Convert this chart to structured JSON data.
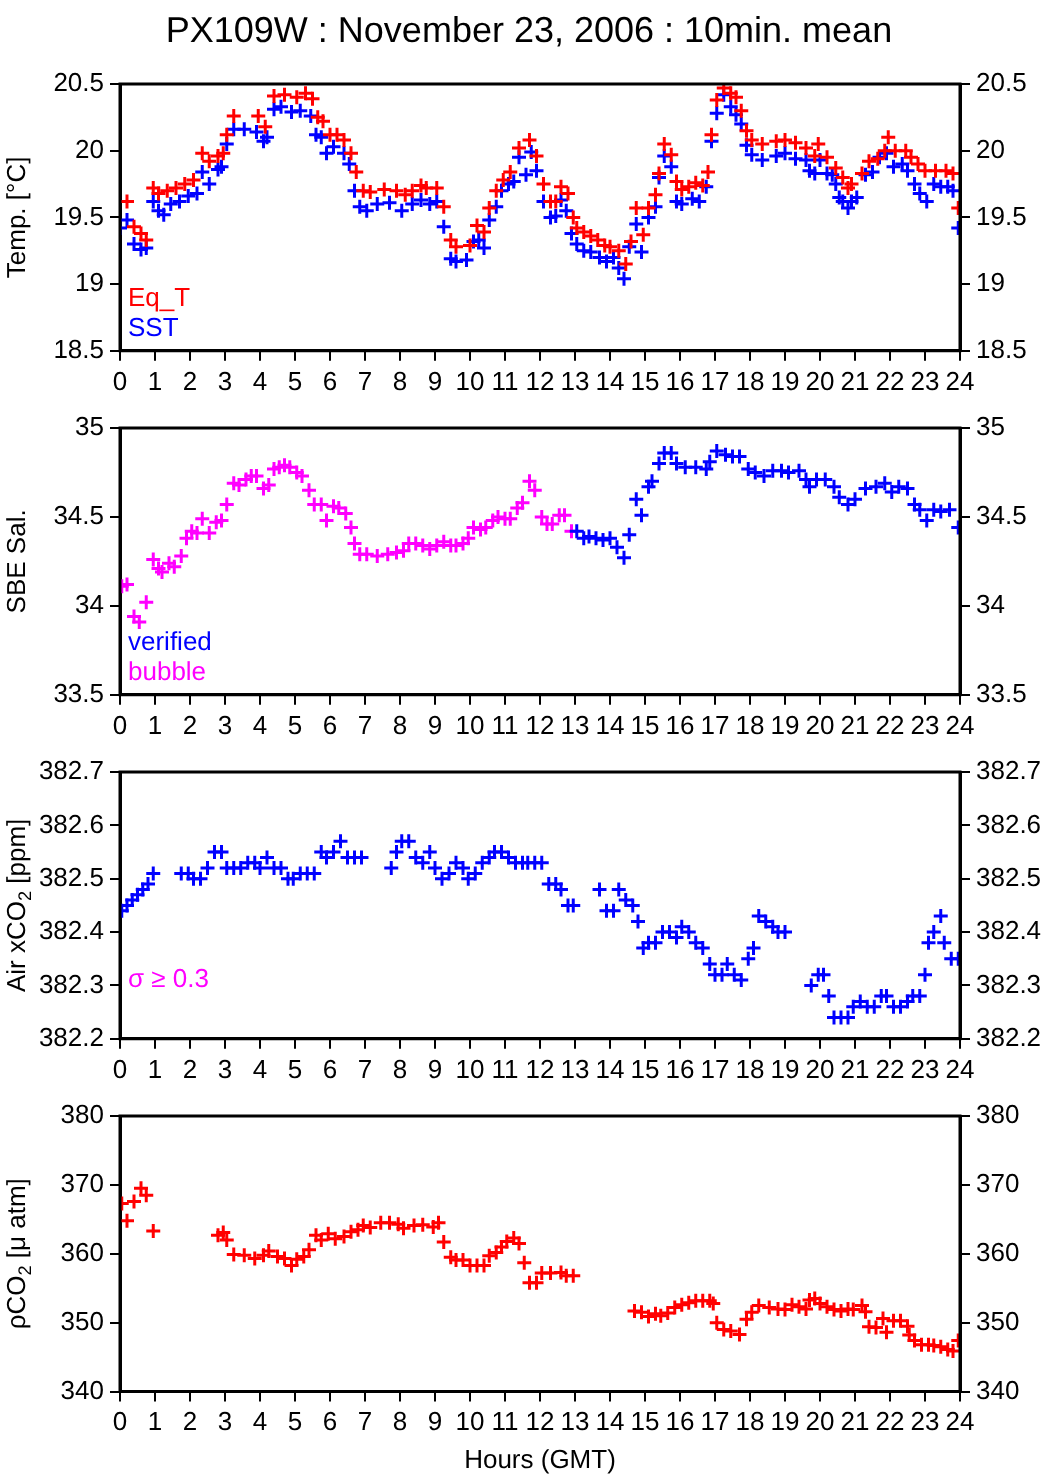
{
  "chart_data": [
    {
      "type": "scatter",
      "title": "PX109W : November 23, 2006 : 10min. mean",
      "ylabel": "Temp. [°C]",
      "marker": "cross",
      "legend": "bottom left",
      "xlim": [
        0,
        24
      ],
      "xticks": [
        0,
        1,
        2,
        3,
        4,
        5,
        6,
        7,
        8,
        9,
        10,
        11,
        12,
        13,
        14,
        15,
        16,
        17,
        18,
        19,
        20,
        21,
        22,
        23,
        24
      ],
      "ylim": [
        18.5,
        20.5
      ],
      "yticks": [
        18.5,
        19,
        19.5,
        20,
        20.5
      ],
      "y2lim": [
        18.5,
        20.5
      ],
      "y2ticks": [
        18.5,
        19,
        19.5,
        20,
        20.5
      ],
      "series": [
        {
          "name": "Eq_T",
          "color": "#ff0000",
          "x": [
            0.2,
            0.4,
            0.6,
            0.75,
            0.95,
            1.1,
            1.35,
            1.6,
            1.85,
            2.1,
            2.35,
            2.55,
            2.8,
            2.95,
            3.05,
            3.25,
            3.95,
            4.15,
            4.4,
            4.7,
            5.05,
            5.3,
            5.5,
            5.65,
            5.8,
            6.0,
            6.2,
            6.4,
            6.6,
            6.75,
            6.95,
            7.15,
            7.55,
            7.9,
            8.15,
            8.35,
            8.6,
            8.75,
            9.05,
            9.25,
            9.45,
            9.6,
            10.0,
            10.2,
            10.4,
            10.55,
            10.75,
            10.95,
            11.15,
            11.4,
            11.7,
            11.9,
            12.1,
            12.3,
            12.45,
            12.6,
            12.8,
            12.95,
            13.05,
            13.25,
            13.45,
            13.65,
            13.85,
            14.0,
            14.25,
            14.45,
            14.6,
            14.75,
            14.95,
            15.1,
            15.3,
            15.4,
            15.55,
            15.75,
            15.9,
            16.05,
            16.25,
            16.45,
            16.65,
            16.8,
            16.9,
            17.05,
            17.25,
            17.45,
            17.6,
            17.75,
            17.9,
            18.05,
            18.35,
            18.75,
            19.0,
            19.3,
            19.6,
            19.85,
            19.95,
            20.2,
            20.45,
            20.65,
            20.8,
            20.9,
            21.2,
            21.4,
            21.65,
            21.85,
            21.95,
            22.15,
            22.45,
            22.6,
            22.8,
            23.0,
            23.3,
            23.6,
            23.8,
            23.95
          ],
          "values": [
            19.62,
            19.43,
            19.38,
            19.33,
            19.72,
            19.68,
            19.7,
            19.72,
            19.75,
            19.78,
            19.98,
            19.92,
            19.96,
            19.98,
            20.12,
            20.26,
            20.26,
            20.18,
            20.41,
            20.42,
            20.4,
            20.43,
            20.39,
            20.25,
            20.22,
            20.12,
            20.12,
            20.08,
            19.98,
            19.84,
            19.7,
            19.69,
            19.71,
            19.7,
            19.67,
            19.7,
            19.74,
            19.72,
            19.72,
            19.58,
            19.33,
            19.28,
            19.29,
            19.44,
            19.39,
            19.57,
            19.7,
            19.78,
            19.84,
            20.02,
            20.08,
            19.96,
            19.75,
            19.62,
            19.62,
            19.73,
            19.68,
            19.5,
            19.42,
            19.39,
            19.36,
            19.33,
            19.29,
            19.28,
            19.25,
            19.15,
            19.32,
            19.57,
            19.37,
            19.57,
            19.67,
            19.83,
            20.05,
            19.97,
            19.77,
            19.71,
            19.73,
            19.76,
            19.74,
            19.84,
            20.12,
            20.38,
            20.47,
            20.43,
            20.4,
            20.3,
            20.15,
            20.08,
            20.05,
            20.07,
            20.08,
            20.06,
            20.02,
            19.96,
            20.05,
            19.95,
            19.87,
            19.8,
            19.72,
            19.75,
            19.83,
            19.92,
            19.94,
            20.0,
            20.1,
            20.0,
            20.0,
            19.95,
            19.9,
            19.85,
            19.85,
            19.85,
            19.83,
            19.57
          ]
        },
        {
          "name": "SST",
          "color": "#0000ff",
          "x": [
            0.0,
            0.2,
            0.4,
            0.6,
            0.75,
            0.95,
            1.1,
            1.25,
            1.45,
            1.7,
            1.95,
            2.2,
            2.35,
            2.55,
            2.8,
            2.9,
            3.05,
            3.25,
            3.55,
            3.9,
            4.1,
            4.2,
            4.4,
            4.6,
            4.9,
            5.15,
            5.45,
            5.6,
            5.75,
            5.9,
            6.1,
            6.4,
            6.55,
            6.7,
            6.85,
            7.05,
            7.35,
            7.7,
            8.05,
            8.35,
            8.6,
            8.85,
            9.05,
            9.25,
            9.45,
            9.6,
            9.9,
            10.1,
            10.25,
            10.4,
            10.55,
            10.75,
            10.9,
            11.1,
            11.25,
            11.4,
            11.6,
            11.75,
            11.9,
            12.1,
            12.3,
            12.45,
            12.6,
            12.75,
            12.9,
            13.05,
            13.25,
            13.45,
            13.7,
            13.9,
            14.1,
            14.25,
            14.4,
            14.55,
            14.75,
            14.9,
            15.1,
            15.3,
            15.4,
            15.55,
            15.75,
            15.9,
            16.05,
            16.35,
            16.55,
            16.75,
            16.9,
            17.05,
            17.25,
            17.45,
            17.6,
            17.75,
            17.9,
            18.05,
            18.35,
            18.75,
            19.0,
            19.3,
            19.6,
            19.7,
            19.85,
            20.0,
            20.2,
            20.35,
            20.45,
            20.55,
            20.65,
            20.8,
            20.9,
            21.05,
            21.3,
            21.5,
            21.7,
            21.9,
            22.1,
            22.35,
            22.5,
            22.7,
            22.85,
            23.05,
            23.25,
            23.45,
            23.65,
            23.8,
            23.95
          ],
          "values": [
            19.42,
            19.48,
            19.3,
            19.26,
            19.27,
            19.62,
            19.55,
            19.52,
            19.6,
            19.62,
            19.66,
            19.68,
            19.84,
            19.75,
            19.86,
            19.88,
            20.05,
            20.16,
            20.16,
            20.14,
            20.07,
            20.1,
            20.31,
            20.33,
            20.29,
            20.3,
            20.26,
            20.12,
            20.1,
            19.98,
            20.03,
            19.98,
            19.9,
            19.7,
            19.58,
            19.55,
            19.6,
            19.61,
            19.55,
            19.6,
            19.63,
            19.6,
            19.62,
            19.43,
            19.19,
            19.17,
            19.18,
            19.32,
            19.33,
            19.27,
            19.48,
            19.58,
            19.7,
            19.75,
            19.77,
            19.95,
            19.82,
            19.99,
            19.85,
            19.62,
            19.5,
            19.51,
            19.63,
            19.55,
            19.38,
            19.3,
            19.25,
            19.24,
            19.2,
            19.17,
            19.2,
            19.12,
            19.04,
            19.28,
            19.45,
            19.24,
            19.5,
            19.58,
            19.8,
            19.96,
            19.88,
            19.62,
            19.6,
            19.64,
            19.62,
            19.73,
            20.07,
            20.28,
            20.42,
            20.33,
            20.27,
            20.2,
            20.04,
            19.97,
            19.93,
            19.96,
            19.98,
            19.94,
            19.93,
            19.85,
            19.83,
            19.93,
            19.83,
            19.82,
            19.75,
            19.65,
            19.62,
            19.57,
            19.62,
            19.65,
            19.82,
            19.84,
            19.95,
            19.98,
            19.88,
            19.9,
            19.85,
            19.75,
            19.68,
            19.62,
            19.75,
            19.73,
            19.73,
            19.7,
            19.42
          ]
        }
      ]
    },
    {
      "type": "scatter",
      "ylabel": "SBE Sal.",
      "marker": "cross",
      "legend": "bottom left",
      "xlim": [
        0,
        24
      ],
      "xticks": [
        0,
        1,
        2,
        3,
        4,
        5,
        6,
        7,
        8,
        9,
        10,
        11,
        12,
        13,
        14,
        15,
        16,
        17,
        18,
        19,
        20,
        21,
        22,
        23,
        24
      ],
      "ylim": [
        33.5,
        35
      ],
      "yticks": [
        33.5,
        34,
        34.5,
        35
      ],
      "y2lim": [
        33.5,
        35
      ],
      "y2ticks": [
        33.5,
        34,
        34.5,
        35
      ],
      "series": [
        {
          "name": "verified",
          "color": "#0000ff",
          "x": [
            13.05,
            13.25,
            13.4,
            13.6,
            13.8,
            14.0,
            14.2,
            14.4,
            14.55,
            14.75,
            14.9,
            15.1,
            15.2,
            15.4,
            15.55,
            15.75,
            15.9,
            16.15,
            16.45,
            16.75,
            16.85,
            17.05,
            17.3,
            17.5,
            17.7,
            17.95,
            18.15,
            18.4,
            18.65,
            18.9,
            19.1,
            19.4,
            19.6,
            19.7,
            19.9,
            20.15,
            20.4,
            20.55,
            20.8,
            21.0,
            21.3,
            21.6,
            21.85,
            22.05,
            22.25,
            22.5,
            22.7,
            22.85,
            23.05,
            23.25,
            23.45,
            23.7,
            23.95
          ],
          "values": [
            34.42,
            34.38,
            34.39,
            34.38,
            34.37,
            34.38,
            34.33,
            34.27,
            34.4,
            34.6,
            34.51,
            34.67,
            34.7,
            34.8,
            34.86,
            34.86,
            34.8,
            34.78,
            34.78,
            34.77,
            34.81,
            34.87,
            34.85,
            34.84,
            34.84,
            34.77,
            34.75,
            34.73,
            34.76,
            34.76,
            34.75,
            34.76,
            34.71,
            34.67,
            34.71,
            34.71,
            34.67,
            34.61,
            34.57,
            34.6,
            34.66,
            34.67,
            34.69,
            34.64,
            34.67,
            34.66,
            34.57,
            34.54,
            34.48,
            34.54,
            34.53,
            34.54,
            34.44
          ]
        },
        {
          "name": "bubble",
          "color": "#ff00ff",
          "x": [
            0.05,
            0.2,
            0.4,
            0.55,
            0.75,
            0.95,
            1.1,
            1.2,
            1.4,
            1.55,
            1.75,
            1.9,
            2.05,
            2.2,
            2.35,
            2.55,
            2.75,
            2.9,
            3.05,
            3.25,
            3.4,
            3.6,
            3.75,
            3.9,
            4.1,
            4.25,
            4.4,
            4.55,
            4.7,
            4.85,
            5.05,
            5.2,
            5.4,
            5.55,
            5.75,
            5.9,
            6.1,
            6.25,
            6.45,
            6.6,
            6.7,
            6.85,
            7.05,
            7.35,
            7.65,
            7.9,
            8.1,
            8.25,
            8.45,
            8.65,
            8.85,
            9.05,
            9.25,
            9.45,
            9.6,
            9.8,
            9.95,
            10.1,
            10.3,
            10.45,
            10.65,
            10.8,
            11.0,
            11.15,
            11.35,
            11.5,
            11.7,
            11.85,
            12.05,
            12.2,
            12.35,
            12.55,
            12.7,
            12.9
          ],
          "values": [
            34.11,
            34.12,
            33.94,
            33.91,
            34.02,
            34.26,
            34.21,
            34.19,
            34.24,
            34.22,
            34.28,
            34.38,
            34.42,
            34.41,
            34.49,
            34.41,
            34.47,
            34.48,
            34.57,
            34.69,
            34.68,
            34.71,
            34.73,
            34.73,
            34.66,
            34.68,
            34.77,
            34.78,
            34.79,
            34.78,
            34.75,
            34.73,
            34.65,
            34.57,
            34.57,
            34.48,
            34.56,
            34.55,
            34.52,
            34.44,
            34.35,
            34.29,
            34.29,
            34.28,
            34.29,
            34.3,
            34.31,
            34.35,
            34.35,
            34.34,
            34.32,
            34.34,
            34.36,
            34.34,
            34.34,
            34.35,
            34.38,
            34.44,
            34.43,
            34.44,
            34.48,
            34.5,
            34.49,
            34.49,
            34.55,
            34.58,
            34.7,
            34.65,
            34.5,
            34.46,
            34.46,
            34.51,
            34.51,
            34.42
          ]
        }
      ]
    },
    {
      "type": "scatter",
      "ylabel": "Air xCO$_{2}$ [ppm]",
      "marker": "cross",
      "annotations": [
        "σ ≥ 0.3"
      ],
      "xlim": [
        0,
        24
      ],
      "xticks": [
        0,
        1,
        2,
        3,
        4,
        5,
        6,
        7,
        8,
        9,
        10,
        11,
        12,
        13,
        14,
        15,
        16,
        17,
        18,
        19,
        20,
        21,
        22,
        23,
        24
      ],
      "ylim": [
        382.2,
        382.7
      ],
      "yticks": [
        382.2,
        382.3,
        382.4,
        382.5,
        382.6,
        382.7
      ],
      "y2lim": [
        382.2,
        382.7
      ],
      "y2ticks": [
        382.2,
        382.3,
        382.4,
        382.5,
        382.6,
        382.7
      ],
      "series": [
        {
          "color": "#0000ff",
          "x": [
            0.05,
            0.2,
            0.35,
            0.5,
            0.65,
            0.8,
            0.95,
            1.75,
            1.95,
            2.1,
            2.3,
            2.5,
            2.7,
            2.9,
            3.05,
            3.25,
            3.45,
            3.65,
            3.85,
            4.0,
            4.2,
            4.4,
            4.6,
            4.8,
            4.95,
            5.15,
            5.35,
            5.55,
            5.75,
            5.9,
            6.1,
            6.3,
            6.5,
            6.7,
            6.9,
            7.75,
            7.9,
            8.05,
            8.25,
            8.45,
            8.65,
            8.85,
            9.0,
            9.2,
            9.4,
            9.6,
            9.8,
            9.95,
            10.15,
            10.35,
            10.55,
            10.7,
            10.9,
            11.1,
            11.3,
            11.5,
            11.65,
            11.85,
            12.05,
            12.25,
            12.45,
            12.6,
            12.8,
            12.95,
            13.7,
            13.9,
            14.1,
            14.25,
            14.45,
            14.65,
            14.8,
            14.95,
            15.1,
            15.3,
            15.5,
            15.7,
            15.9,
            16.05,
            16.25,
            16.45,
            16.65,
            16.85,
            17.0,
            17.2,
            17.35,
            17.55,
            17.75,
            17.95,
            18.1,
            18.25,
            18.45,
            18.65,
            18.8,
            19.0,
            19.75,
            19.95,
            20.1,
            20.25,
            20.4,
            20.6,
            20.8,
            20.95,
            21.15,
            21.35,
            21.55,
            21.75,
            21.9,
            22.1,
            22.3,
            22.5,
            22.65,
            22.85,
            23.0,
            23.1,
            23.25,
            23.45,
            23.55,
            23.75,
            23.95
          ],
          "values": [
            382.44,
            382.45,
            382.46,
            382.47,
            382.48,
            382.49,
            382.51,
            382.51,
            382.51,
            382.5,
            382.5,
            382.52,
            382.55,
            382.55,
            382.52,
            382.52,
            382.52,
            382.53,
            382.53,
            382.52,
            382.54,
            382.52,
            382.52,
            382.5,
            382.5,
            382.51,
            382.51,
            382.51,
            382.55,
            382.54,
            382.55,
            382.57,
            382.54,
            382.54,
            382.54,
            382.52,
            382.55,
            382.57,
            382.57,
            382.54,
            382.53,
            382.55,
            382.52,
            382.5,
            382.51,
            382.53,
            382.52,
            382.5,
            382.51,
            382.53,
            382.54,
            382.55,
            382.55,
            382.54,
            382.53,
            382.53,
            382.53,
            382.53,
            382.53,
            382.49,
            382.49,
            382.48,
            382.45,
            382.45,
            382.48,
            382.44,
            382.44,
            382.48,
            382.46,
            382.45,
            382.42,
            382.37,
            382.38,
            382.38,
            382.4,
            382.4,
            382.39,
            382.41,
            382.4,
            382.38,
            382.37,
            382.34,
            382.32,
            382.32,
            382.34,
            382.32,
            382.31,
            382.35,
            382.37,
            382.43,
            382.42,
            382.41,
            382.4,
            382.4,
            382.3,
            382.32,
            382.32,
            382.28,
            382.24,
            382.24,
            382.24,
            382.26,
            382.27,
            382.26,
            382.26,
            382.28,
            382.28,
            382.26,
            382.26,
            382.27,
            382.28,
            382.28,
            382.32,
            382.38,
            382.4,
            382.43,
            382.38,
            382.35,
            382.35
          ]
        }
      ]
    },
    {
      "type": "scatter",
      "ylabel": "ρCO$_{2}$ [μ atm]",
      "xlabel": "Hours (GMT)",
      "marker": "cross",
      "xlim": [
        0,
        24
      ],
      "xticks": [
        0,
        1,
        2,
        3,
        4,
        5,
        6,
        7,
        8,
        9,
        10,
        11,
        12,
        13,
        14,
        15,
        16,
        17,
        18,
        19,
        20,
        21,
        22,
        23,
        24
      ],
      "ylim": [
        340,
        380
      ],
      "yticks": [
        340,
        350,
        360,
        370,
        380
      ],
      "y2lim": [
        340,
        380
      ],
      "y2ticks": [
        340,
        350,
        360,
        370,
        380
      ],
      "series": [
        {
          "color": "#ff0000",
          "x": [
            0.05,
            0.2,
            0.4,
            0.6,
            0.75,
            0.95,
            2.8,
            2.95,
            3.05,
            3.25,
            3.55,
            3.85,
            4.1,
            4.25,
            4.5,
            4.7,
            4.9,
            5.05,
            5.25,
            5.4,
            5.6,
            5.75,
            5.95,
            6.15,
            6.4,
            6.6,
            6.8,
            6.95,
            7.15,
            7.45,
            7.7,
            7.95,
            8.1,
            8.4,
            8.65,
            8.95,
            9.1,
            9.25,
            9.45,
            9.6,
            9.8,
            10.0,
            10.2,
            10.4,
            10.55,
            10.75,
            10.9,
            11.05,
            11.25,
            11.4,
            11.55,
            11.7,
            11.9,
            12.05,
            12.3,
            12.6,
            12.75,
            12.95,
            14.7,
            14.9,
            15.1,
            15.3,
            15.45,
            15.65,
            15.85,
            16.05,
            16.25,
            16.45,
            16.65,
            16.85,
            16.95,
            17.05,
            17.25,
            17.45,
            17.7,
            17.9,
            18.05,
            18.25,
            18.55,
            18.8,
            19.0,
            19.2,
            19.4,
            19.6,
            19.7,
            19.85,
            20.0,
            20.2,
            20.4,
            20.6,
            20.8,
            20.95,
            21.2,
            21.3,
            21.4,
            21.6,
            21.8,
            21.9,
            22.1,
            22.3,
            22.5,
            22.55,
            22.7,
            22.9,
            23.1,
            23.25,
            23.45,
            23.65,
            23.8,
            23.95
          ],
          "values": [
            367.3,
            364.8,
            367.6,
            369.5,
            368.5,
            363.3,
            362.7,
            363.1,
            362.0,
            359.9,
            359.8,
            359.3,
            359.8,
            360.4,
            359.6,
            359.3,
            358.3,
            359.2,
            359.6,
            360.6,
            362.7,
            362.0,
            362.9,
            362.2,
            362.5,
            363.2,
            363.5,
            364.1,
            363.8,
            364.5,
            364.5,
            364.3,
            363.7,
            364.1,
            364.2,
            363.9,
            364.5,
            361.7,
            359.5,
            359.1,
            359.1,
            358.3,
            358.3,
            358.3,
            359.7,
            360.2,
            361.0,
            361.8,
            362.3,
            361.5,
            358.7,
            355.8,
            355.8,
            357.2,
            357.2,
            357.3,
            356.8,
            356.8,
            351.7,
            351.5,
            350.9,
            351.3,
            351.0,
            351.4,
            352.2,
            352.6,
            352.9,
            353.2,
            353.2,
            353.2,
            352.8,
            350.0,
            349.0,
            348.8,
            348.3,
            350.5,
            351.5,
            352.5,
            352.2,
            352.0,
            351.9,
            352.6,
            352.3,
            352.0,
            353.3,
            353.5,
            352.8,
            352.3,
            351.9,
            351.7,
            352.0,
            351.9,
            352.5,
            351.6,
            349.4,
            349.3,
            350.6,
            348.6,
            350.3,
            350.3,
            349.5,
            348.2,
            347.4,
            346.8,
            346.8,
            346.7,
            346.5,
            346.1,
            345.9,
            347.4
          ]
        }
      ]
    }
  ]
}
